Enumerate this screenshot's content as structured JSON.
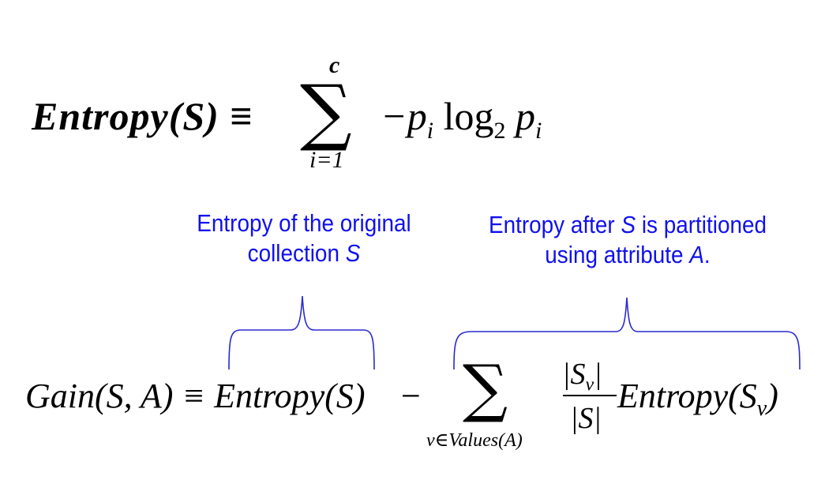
{
  "formula_entropy": {
    "lhs": "Entropy(S) ≡",
    "sum_symbol": "∑",
    "upper_limit": "c",
    "lower_limit": "i=1",
    "rhs_prefix": "−p",
    "rhs_sub": "i",
    "rhs_log": "log",
    "rhs_log_base": "2",
    "rhs_p": "p",
    "rhs_p_sub": "i"
  },
  "formula_gain": {
    "lhs": "Gain(S, A) ≡ Entropy(S)",
    "minus": "−",
    "sum_symbol": "∑",
    "sum_subscript": "v∈Values(A)",
    "numerator": "|S",
    "numerator_sub": "v",
    "numerator_close": "|",
    "denominator": "|S|",
    "tail": "Entropy(S",
    "tail_sub": "v",
    "tail_close": ")"
  },
  "annotations": {
    "left_line1": "Entropy of the original",
    "left_line2_prefix": "collection ",
    "left_line2_var": "S",
    "right_line1_prefix": "Entropy after ",
    "right_line1_var": "S",
    "right_line1_suffix": " is partitioned",
    "right_line2_prefix": "using attribute ",
    "right_line2_var": "A",
    "right_line2_suffix": "."
  },
  "colors": {
    "annotation": "#1010ee",
    "brace": "#2a2ad0",
    "formula": "#000000"
  }
}
